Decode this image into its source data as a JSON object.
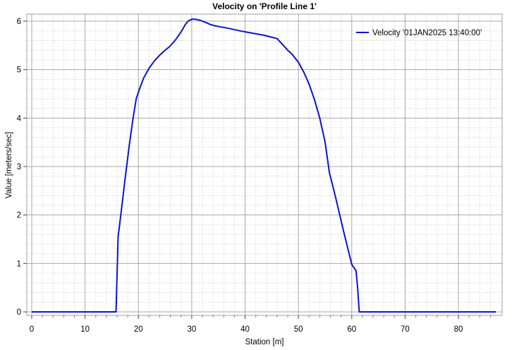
{
  "chart_data": {
    "type": "line",
    "title": "Velocity on 'Profile Line 1'",
    "xlabel": "Station [m]",
    "ylabel": "Value [meters/sec]",
    "xlim": [
      0,
      87
    ],
    "ylim": [
      0,
      6
    ],
    "x_ticks": [
      0,
      10,
      20,
      30,
      40,
      50,
      60,
      70,
      80
    ],
    "y_ticks": [
      0,
      1,
      2,
      3,
      4,
      5,
      6
    ],
    "grid": true,
    "legend_position": "top-right",
    "series": [
      {
        "name": "Velocity '01JAN2025 13:40:00'",
        "color": "#0a14d2",
        "x": [
          0,
          15.8,
          16.2,
          16.8,
          17.5,
          18.3,
          19.0,
          19.6,
          20.2,
          21.0,
          22.0,
          23.0,
          24.0,
          25.0,
          25.8,
          27.0,
          28.0,
          28.8,
          29.3,
          30.0,
          30.7,
          31.5,
          32.5,
          33.5,
          34.5,
          35.5,
          37.0,
          39.0,
          41.0,
          43.5,
          46.0,
          48.0,
          48.8,
          50.0,
          51.0,
          52.0,
          53.0,
          54.0,
          55.0,
          55.8,
          57.0,
          58.5,
          60.0,
          60.8,
          61.1,
          61.4,
          87
        ],
        "y": [
          0,
          0,
          1.55,
          2.1,
          2.75,
          3.45,
          4.0,
          4.4,
          4.6,
          4.83,
          5.03,
          5.18,
          5.3,
          5.4,
          5.47,
          5.62,
          5.78,
          5.93,
          6.0,
          6.04,
          6.04,
          6.02,
          5.98,
          5.93,
          5.9,
          5.88,
          5.85,
          5.8,
          5.76,
          5.71,
          5.64,
          5.4,
          5.32,
          5.15,
          4.95,
          4.7,
          4.38,
          4.0,
          3.5,
          2.88,
          2.35,
          1.65,
          0.98,
          0.85,
          0.5,
          0,
          0
        ]
      }
    ]
  }
}
